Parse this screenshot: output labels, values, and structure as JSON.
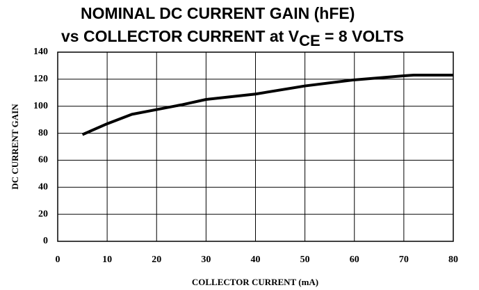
{
  "chart_data": {
    "type": "line",
    "title": [
      "NOMINAL DC CURRENT GAIN (hFE)",
      [
        "vs COLLECTOR CURRENT at V",
        "CE",
        " = 8 VOLTS"
      ]
    ],
    "x_label": "COLLECTOR CURRENT (mA)",
    "y_label": "DC CURRENT GAIN",
    "x": [
      5,
      10,
      15,
      20,
      25,
      30,
      40,
      50,
      60,
      70,
      72,
      80
    ],
    "series": [
      {
        "color": "#000000",
        "values": [
          79,
          87,
          94,
          97.5,
          101,
          105,
          109,
          115,
          119.5,
          122.5,
          123,
          123
        ]
      }
    ],
    "xlim": [
      0,
      80
    ],
    "xticks": [
      0,
      10,
      20,
      30,
      40,
      50,
      60,
      70,
      80
    ],
    "ylim": [
      0,
      140
    ],
    "yticks": [
      0,
      20,
      40,
      60,
      80,
      100,
      120,
      140
    ],
    "grid": true
  }
}
